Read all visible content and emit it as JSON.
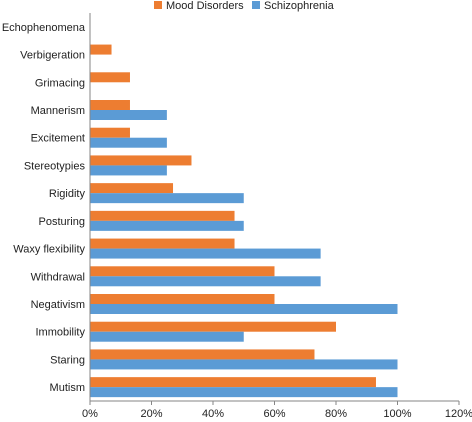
{
  "chart_data": {
    "type": "bar",
    "orientation": "horizontal",
    "categories": [
      "Mutism",
      "Staring",
      "Immobility",
      "Negativism",
      "Withdrawal",
      "Waxy flexibility",
      "Posturing",
      "Rigidity",
      "Stereotypies",
      "Excitement",
      "Mannerism",
      "Grimacing",
      "Verbigeration",
      "Echophenomena"
    ],
    "series": [
      {
        "name": "Mood Disorders",
        "color": "#ED7D31",
        "values": [
          93,
          73,
          80,
          60,
          60,
          47,
          47,
          27,
          33,
          13,
          13,
          13,
          7,
          0
        ]
      },
      {
        "name": "Schizophrenia",
        "color": "#5B9BD5",
        "values": [
          100,
          100,
          50,
          100,
          75,
          75,
          50,
          50,
          25,
          25,
          25,
          0,
          0,
          0
        ]
      }
    ],
    "xticks": [
      "0%",
      "20%",
      "40%",
      "60%",
      "80%",
      "100%",
      "120%"
    ],
    "xlim": [
      0,
      120
    ],
    "legend_position": "top",
    "grid": false
  }
}
